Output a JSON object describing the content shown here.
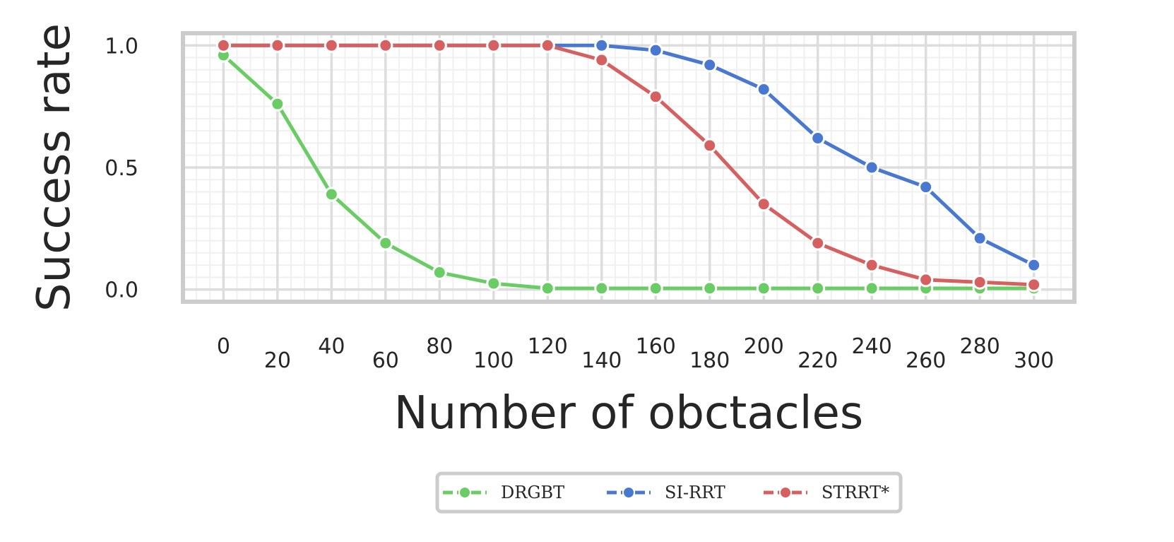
{
  "chart_data": {
    "type": "line",
    "xlabel": "Number of obctacles",
    "ylabel": "Success rate",
    "x": [
      0,
      20,
      40,
      60,
      80,
      100,
      120,
      140,
      160,
      180,
      200,
      220,
      240,
      260,
      280,
      300
    ],
    "x_tick_labels": [
      "0",
      "20",
      "40",
      "60",
      "80",
      "100",
      "120",
      "140",
      "160",
      "180",
      "200",
      "220",
      "240",
      "260",
      "280",
      "300"
    ],
    "y_ticks": [
      0.0,
      0.5,
      1.0
    ],
    "y_tick_labels": [
      "0.0",
      "0.5",
      "1.0"
    ],
    "xlim": [
      -15,
      315
    ],
    "ylim": [
      -0.05,
      1.05
    ],
    "grid": true,
    "minor_grid": true,
    "legend_position": "bottom-center",
    "series": [
      {
        "name": "DRGBT",
        "color": "#6acc64",
        "values": [
          0.96,
          0.76,
          0.39,
          0.19,
          0.07,
          0.025,
          0.005,
          0.005,
          0.005,
          0.005,
          0.005,
          0.005,
          0.005,
          0.005,
          0.005,
          0.005
        ]
      },
      {
        "name": "SI-RRT",
        "color": "#4878d0",
        "values": [
          1.0,
          1.0,
          1.0,
          1.0,
          1.0,
          1.0,
          1.0,
          1.0,
          0.98,
          0.92,
          0.82,
          0.62,
          0.5,
          0.42,
          0.21,
          0.1
        ]
      },
      {
        "name": "STRRT*",
        "color": "#d65f5f",
        "values": [
          1.0,
          1.0,
          1.0,
          1.0,
          1.0,
          1.0,
          1.0,
          0.94,
          0.79,
          0.59,
          0.35,
          0.19,
          0.1,
          0.04,
          0.03,
          0.02
        ]
      }
    ]
  }
}
